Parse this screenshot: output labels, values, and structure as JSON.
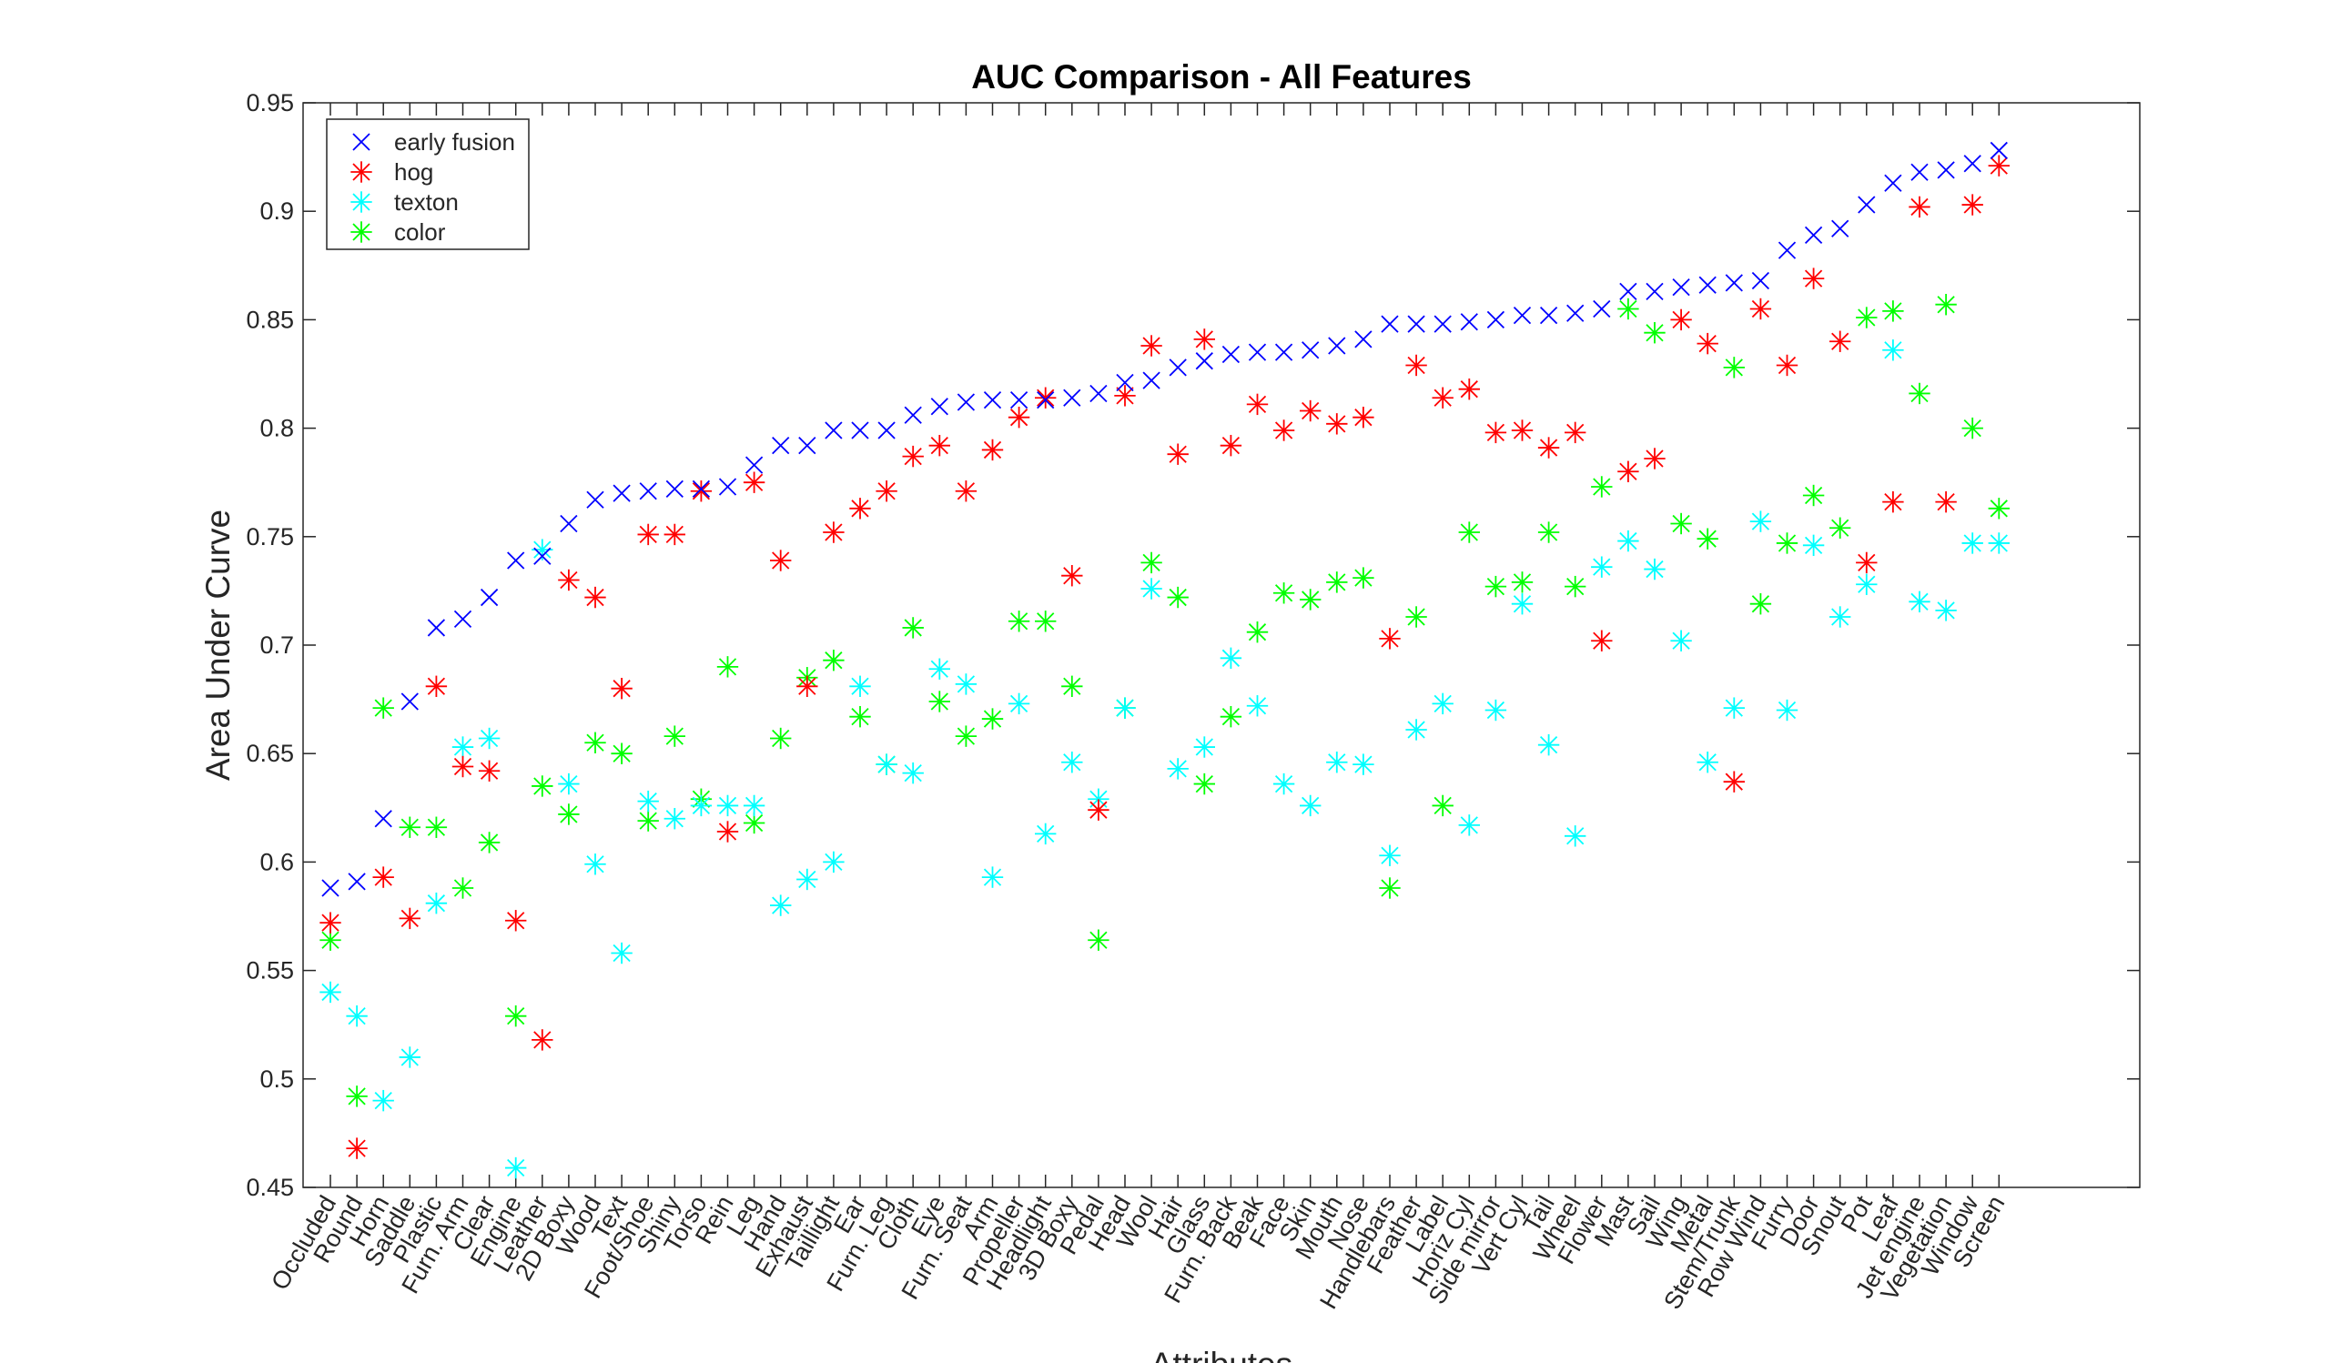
{
  "chart_data": {
    "type": "scatter",
    "title": "AUC Comparison - All Features",
    "xlabel": "Attributes",
    "ylabel": "Area Under Curve",
    "ylim": [
      0.45,
      0.95
    ],
    "yticks": [
      "0.45",
      "0.5",
      "0.55",
      "0.6",
      "0.65",
      "0.7",
      "0.75",
      "0.8",
      "0.85",
      "0.9",
      "0.95"
    ],
    "grid": false,
    "legend_position": "top-left",
    "categories": [
      "Occluded",
      "Round",
      "Horn",
      "Saddle",
      "Plastic",
      "Furn. Arm",
      "Clear",
      "Engine",
      "Leather",
      "2D Boxy",
      "Wood",
      "Text",
      "Foot/Shoe",
      "Shiny",
      "Torso",
      "Rein",
      "Leg",
      "Hand",
      "Exhaust",
      "Taillight",
      "Ear",
      "Furn. Leg",
      "Cloth",
      "Eye",
      "Furn. Seat",
      "Arm",
      "Propeller",
      "Headlight",
      "3D Boxy",
      "Pedal",
      "Head",
      "Wool",
      "Hair",
      "Glass",
      "Furn. Back",
      "Beak",
      "Face",
      "Skin",
      "Mouth",
      "Nose",
      "Handlebars",
      "Feather",
      "Label",
      "Horiz Cyl",
      "Side mirror",
      "Vert Cyl",
      "Tail",
      "Wheel",
      "Flower",
      "Mast",
      "Sail",
      "Wing",
      "Metal",
      "Stem/Trunk",
      "Row Wind",
      "Furry",
      "Door",
      "Snout",
      "Pot",
      "Leaf",
      "Jet engine",
      "Vegetation",
      "Window",
      "Screen"
    ],
    "series": [
      {
        "name": "early fusion",
        "marker": "x",
        "color": "#0000ff",
        "values": [
          0.588,
          0.591,
          0.62,
          0.674,
          0.708,
          0.712,
          0.722,
          0.739,
          0.741,
          0.756,
          0.767,
          0.77,
          0.771,
          0.772,
          0.772,
          0.773,
          0.783,
          0.792,
          0.792,
          0.799,
          0.799,
          0.799,
          0.806,
          0.81,
          0.812,
          0.813,
          0.813,
          0.813,
          0.814,
          0.816,
          0.821,
          0.822,
          0.828,
          0.831,
          0.834,
          0.835,
          0.835,
          0.836,
          0.838,
          0.841,
          0.848,
          0.848,
          0.848,
          0.849,
          0.85,
          0.852,
          0.852,
          0.853,
          0.855,
          0.863,
          0.863,
          0.865,
          0.866,
          0.867,
          0.868,
          0.882,
          0.889,
          0.892,
          0.903,
          0.913,
          0.918,
          0.919,
          0.922,
          0.928
        ]
      },
      {
        "name": "hog",
        "marker": "*",
        "color": "#ff0000",
        "values": [
          0.572,
          0.468,
          0.593,
          0.574,
          0.681,
          0.644,
          0.642,
          0.573,
          0.518,
          0.73,
          0.722,
          0.68,
          0.751,
          0.751,
          0.771,
          0.614,
          0.775,
          0.739,
          0.681,
          0.752,
          0.763,
          0.771,
          0.787,
          0.792,
          0.771,
          0.79,
          0.805,
          0.814,
          0.732,
          0.624,
          0.815,
          0.838,
          0.788,
          0.841,
          0.792,
          0.811,
          0.799,
          0.808,
          0.802,
          0.805,
          0.703,
          0.829,
          0.814,
          0.818,
          0.798,
          0.799,
          0.791,
          0.798,
          0.702,
          0.78,
          0.786,
          0.85,
          0.839,
          0.637,
          0.855,
          0.829,
          0.869,
          0.84,
          0.738,
          0.766,
          0.902,
          0.766,
          0.903,
          0.921
        ]
      },
      {
        "name": "texton",
        "marker": "*",
        "color": "#00ffff",
        "values": [
          0.54,
          0.529,
          0.49,
          0.51,
          0.581,
          0.653,
          0.657,
          0.459,
          0.744,
          0.636,
          0.599,
          0.558,
          0.628,
          0.62,
          0.626,
          0.626,
          0.626,
          0.58,
          0.592,
          0.6,
          0.681,
          0.645,
          0.641,
          0.689,
          0.682,
          0.593,
          0.673,
          0.613,
          0.646,
          0.629,
          0.671,
          0.726,
          0.643,
          0.653,
          0.694,
          0.672,
          0.636,
          0.626,
          0.646,
          0.645,
          0.603,
          0.661,
          0.673,
          0.617,
          0.67,
          0.719,
          0.654,
          0.612,
          0.736,
          0.748,
          0.735,
          0.702,
          0.646,
          0.671,
          0.757,
          0.67,
          0.746,
          0.713,
          0.728,
          0.836,
          0.72,
          0.716,
          0.747,
          0.747
        ]
      },
      {
        "name": "color",
        "marker": "*",
        "color": "#00ff00",
        "values": [
          0.564,
          0.492,
          0.671,
          0.616,
          0.616,
          0.588,
          0.609,
          0.529,
          0.635,
          0.622,
          0.655,
          0.65,
          0.619,
          0.658,
          0.629,
          0.69,
          0.618,
          0.657,
          0.685,
          0.693,
          0.667,
          0.645,
          0.708,
          0.674,
          0.658,
          0.666,
          0.711,
          0.711,
          0.681,
          0.564,
          0.671,
          0.738,
          0.722,
          0.636,
          0.667,
          0.706,
          0.724,
          0.721,
          0.729,
          0.731,
          0.588,
          0.713,
          0.626,
          0.752,
          0.727,
          0.729,
          0.752,
          0.727,
          0.773,
          0.855,
          0.844,
          0.756,
          0.749,
          0.828,
          0.719,
          0.747,
          0.769,
          0.754,
          0.851,
          0.854,
          0.816,
          0.857,
          0.8,
          0.763
        ]
      }
    ]
  }
}
